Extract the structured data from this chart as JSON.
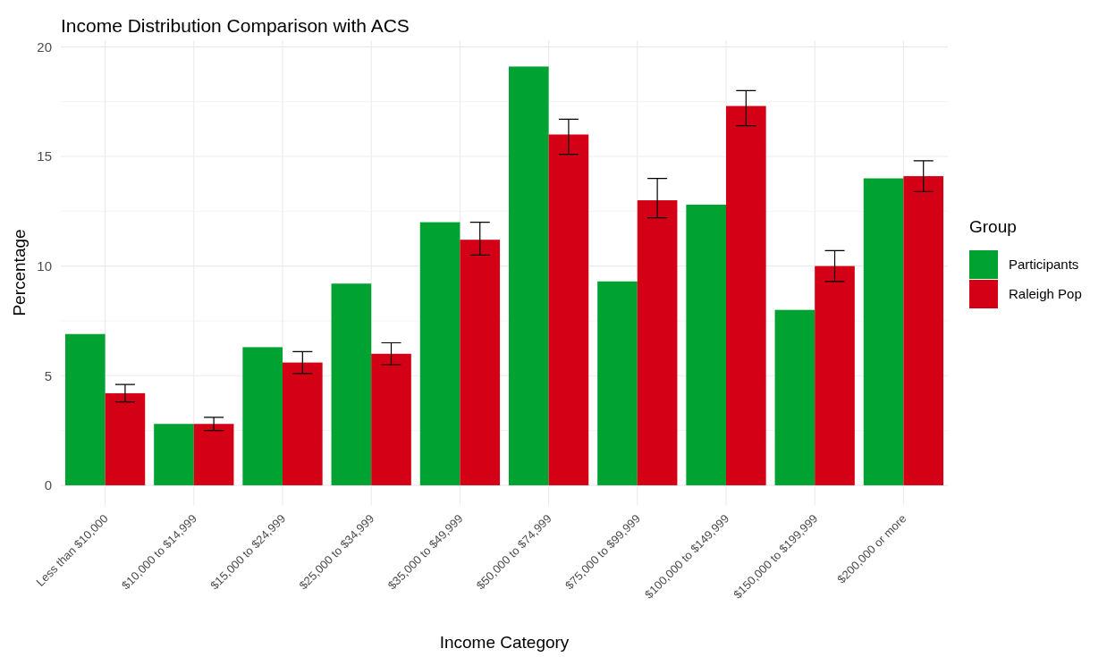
{
  "chart_data": {
    "type": "bar",
    "title": "Income Distribution Comparison with ACS",
    "xlabel": "Income Category",
    "ylabel": "Percentage",
    "legend_title": "Group",
    "categories": [
      "Less than $10,000",
      "$10,000 to $14,999",
      "$15,000 to $24,999",
      "$25,000 to $34,999",
      "$35,000 to $49,999",
      "$50,000 to $74,999",
      "$75,000 to $99,999",
      "$100,000 to $149,999",
      "$150,000 to $199,999",
      "$200,000 or more"
    ],
    "series": [
      {
        "name": "Participants",
        "color": "#00a331",
        "values": [
          6.9,
          2.8,
          6.3,
          9.2,
          12.0,
          19.1,
          9.3,
          12.8,
          8.0,
          14.0
        ]
      },
      {
        "name": "Raleigh Pop",
        "color": "#d40015",
        "values": [
          4.2,
          2.8,
          5.6,
          6.0,
          11.2,
          16.0,
          13.0,
          17.3,
          10.0,
          14.1
        ],
        "errors": [
          [
            3.8,
            4.6
          ],
          [
            2.5,
            3.1
          ],
          [
            5.1,
            6.1
          ],
          [
            5.5,
            6.5
          ],
          [
            10.5,
            12.0
          ],
          [
            15.1,
            16.7
          ],
          [
            12.2,
            14.0
          ],
          [
            16.4,
            18.0
          ],
          [
            9.3,
            10.7
          ],
          [
            13.4,
            14.8
          ]
        ]
      }
    ],
    "ylim": [
      -0.9,
      20.3
    ],
    "yticks": [
      0,
      5,
      10,
      15,
      20
    ],
    "grid": true,
    "legend": "right"
  }
}
